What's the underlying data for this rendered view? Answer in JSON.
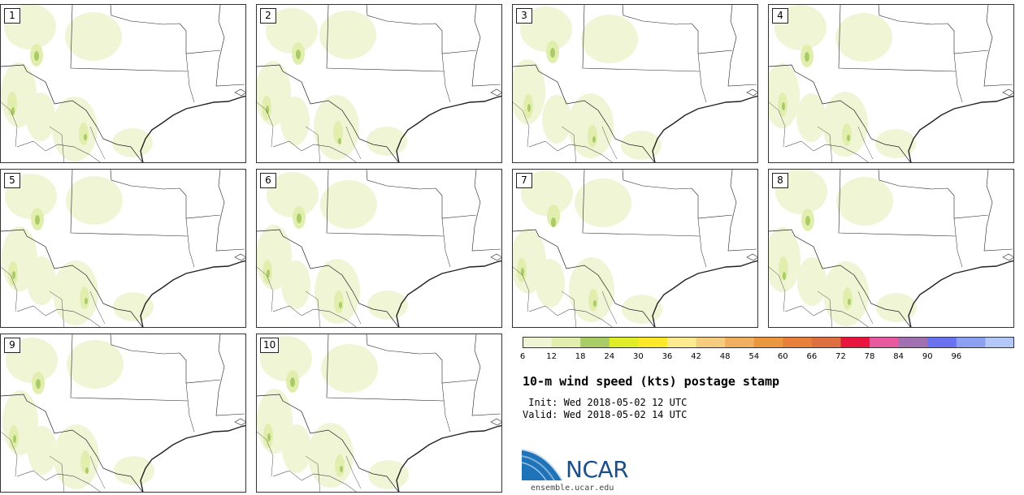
{
  "panels": [
    {
      "label": "1"
    },
    {
      "label": "2"
    },
    {
      "label": "3"
    },
    {
      "label": "4"
    },
    {
      "label": "5"
    },
    {
      "label": "6"
    },
    {
      "label": "7"
    },
    {
      "label": "8"
    },
    {
      "label": "9"
    },
    {
      "label": "10"
    }
  ],
  "colorbar": {
    "ticks": [
      "6",
      "12",
      "18",
      "24",
      "30",
      "36",
      "42",
      "48",
      "54",
      "60",
      "66",
      "72",
      "78",
      "84",
      "90",
      "96"
    ],
    "colors": [
      "#f0f5d6",
      "#e2eeae",
      "#a9cc66",
      "#e0ee2a",
      "#fde92a",
      "#feeb8f",
      "#f6cd7f",
      "#f0b060",
      "#eb9740",
      "#e6803a",
      "#de6f3f",
      "#e8163e",
      "#e85aa0",
      "#a070b0",
      "#6a72f0",
      "#8ca0f2",
      "#b4c8f8"
    ]
  },
  "title": "10-m wind speed (kts) postage stamp",
  "init_line": " Init: Wed 2018-05-02 12 UTC",
  "valid_line": "Valid: Wed 2018-05-02 14 UTC",
  "logo": {
    "text": "NCAR",
    "url": "ensemble.ucar.edu"
  }
}
